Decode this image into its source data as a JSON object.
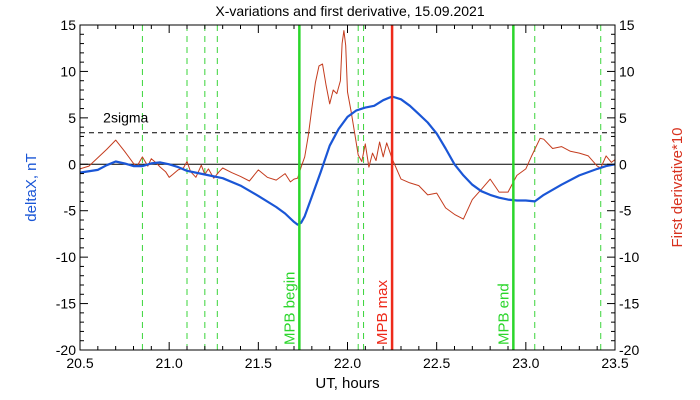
{
  "chart_data": {
    "type": "line",
    "title": "X-variations and first derivative, 15.09.2021",
    "xlabel": "UT, hours",
    "ylabel_left": "deltaX, nT",
    "ylabel_right": "First derivative*10",
    "xlim": [
      20.5,
      23.5
    ],
    "ylim": [
      -20,
      15
    ],
    "xticks": [
      "20.5",
      "21.0",
      "21.5",
      "22.0",
      "22.5",
      "23.0",
      "23.5"
    ],
    "yticks": [
      "-20",
      "-15",
      "-10",
      "-5",
      "0",
      "5",
      "10",
      "15"
    ],
    "colors": {
      "deltaX": "#1a56d6",
      "derivative": "#c43c1e",
      "mpb_marker": "#2bd62b",
      "mpb_max_marker": "#ee2a1a",
      "dashed_marker": "#3ad43a",
      "sigma_line": "#000000",
      "zero_line": "#000000",
      "left_axis_label": "#1a56d6",
      "right_axis_label": "#d8321f"
    },
    "reference_lines": {
      "zero": 0,
      "sigma": {
        "label": "2sigma",
        "value": 3.4
      }
    },
    "vertical_markers": [
      {
        "x": 21.73,
        "label": "MPB begin",
        "kind": "solid",
        "color": "#2bd62b"
      },
      {
        "x": 22.25,
        "label": "MPB max",
        "kind": "solid",
        "color": "#ee2a1a"
      },
      {
        "x": 22.93,
        "label": "MPB end",
        "kind": "solid",
        "color": "#2bd62b"
      }
    ],
    "dashed_markers": [
      20.85,
      21.1,
      21.2,
      21.27,
      22.06,
      22.09,
      23.05,
      23.42
    ],
    "series": [
      {
        "x": [
          20.5,
          20.6,
          20.65,
          20.7,
          20.75,
          20.8,
          20.85,
          20.9,
          20.95,
          21.0,
          21.05,
          21.1,
          21.2,
          21.3,
          21.4,
          21.5,
          21.6,
          21.65,
          21.7,
          21.72,
          21.74,
          21.76,
          21.8,
          21.85,
          21.9,
          21.95,
          22.0,
          22.05,
          22.1,
          22.15,
          22.2,
          22.25,
          22.3,
          22.35,
          22.4,
          22.45,
          22.5,
          22.55,
          22.6,
          22.65,
          22.7,
          22.75,
          22.8,
          22.85,
          22.9,
          22.95,
          23.0,
          23.05,
          23.1,
          23.2,
          23.3,
          23.4,
          23.45,
          23.5
        ],
        "y": [
          -0.9,
          -0.6,
          -0.1,
          0.3,
          0.1,
          -0.2,
          -0.2,
          0.1,
          0.2,
          0,
          -0.3,
          -0.7,
          -1.1,
          -1.5,
          -2.3,
          -3.4,
          -4.6,
          -5.3,
          -6.2,
          -6.5,
          -6.3,
          -5.6,
          -3.5,
          -0.8,
          2.0,
          3.8,
          5.1,
          5.8,
          6.1,
          6.3,
          6.9,
          7.3,
          7.0,
          6.3,
          5.4,
          4.5,
          3.3,
          1.7,
          0,
          -1.2,
          -2.2,
          -2.9,
          -3.3,
          -3.6,
          -3.8,
          -3.9,
          -3.9,
          -4.0,
          -3.3,
          -2.2,
          -1.2,
          -0.5,
          -0.2,
          0
        ]
      },
      {
        "x": [
          20.5,
          20.55,
          20.6,
          20.65,
          20.7,
          20.75,
          20.8,
          20.82,
          20.85,
          20.88,
          20.9,
          20.93,
          20.95,
          20.98,
          21.0,
          21.02,
          21.05,
          21.08,
          21.1,
          21.12,
          21.15,
          21.18,
          21.2,
          21.22,
          21.25,
          21.28,
          21.3,
          21.35,
          21.4,
          21.45,
          21.5,
          21.55,
          21.6,
          21.65,
          21.68,
          21.7,
          21.72,
          21.74,
          21.76,
          21.78,
          21.8,
          21.82,
          21.84,
          21.86,
          21.88,
          21.9,
          21.92,
          21.94,
          21.96,
          21.97,
          21.98,
          21.99,
          22.0,
          22.02,
          22.04,
          22.06,
          22.08,
          22.1,
          22.12,
          22.14,
          22.16,
          22.18,
          22.2,
          22.22,
          22.25,
          22.3,
          22.35,
          22.4,
          22.45,
          22.5,
          22.55,
          22.6,
          22.65,
          22.7,
          22.75,
          22.8,
          22.85,
          22.9,
          22.95,
          23.0,
          23.03,
          23.05,
          23.08,
          23.1,
          23.15,
          23.2,
          23.25,
          23.3,
          23.35,
          23.4,
          23.42,
          23.45,
          23.48,
          23.5
        ],
        "y": [
          -0.5,
          -0.2,
          0.7,
          1.6,
          2.6,
          1.4,
          0.1,
          -0.2,
          0.8,
          -0.2,
          0.6,
          0.1,
          -0.3,
          -0.8,
          -1.4,
          -1.1,
          -0.6,
          -0.4,
          0.3,
          -0.8,
          -1.4,
          -0.1,
          -1.1,
          -0.5,
          -1.5,
          -0.8,
          -0.4,
          -0.9,
          -1.3,
          -1.8,
          -0.6,
          -1.4,
          -1.7,
          -1.0,
          -1.9,
          -1.6,
          -1.5,
          -0.3,
          0.8,
          3.1,
          6.0,
          8.8,
          10.6,
          10.8,
          8.5,
          6.5,
          8.0,
          7.6,
          9.0,
          13.0,
          14.4,
          12.8,
          7.8,
          5.7,
          3.4,
          1.0,
          0.3,
          2.2,
          -0.3,
          1.2,
          0.4,
          2.4,
          0.8,
          2.3,
          0.6,
          -1.6,
          -2.0,
          -2.3,
          -3.3,
          -3.1,
          -4.7,
          -5.4,
          -5.9,
          -3.8,
          -2.7,
          -1.6,
          -3.0,
          -3.0,
          -1.2,
          -0.5,
          0.8,
          1.6,
          2.8,
          2.7,
          1.7,
          1.9,
          1.4,
          1.2,
          0.9,
          -0.2,
          -0.4,
          0.9,
          0.2,
          0.5
        ]
      }
    ]
  }
}
